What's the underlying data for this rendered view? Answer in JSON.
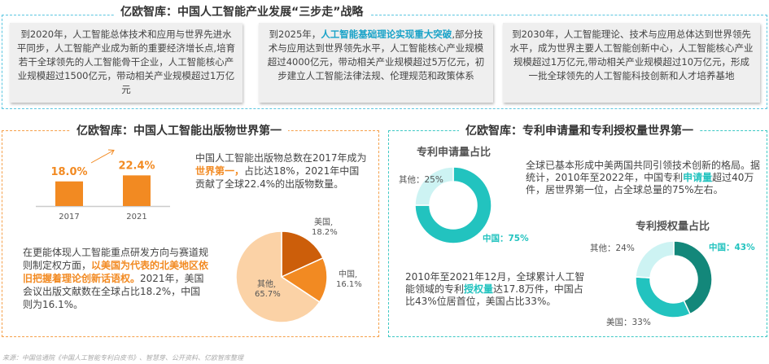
{
  "top": {
    "title": "亿欧智库：中国人工智能产业发展“三步走”战略",
    "border_color": "#5bc6e0",
    "cards": [
      {
        "parts": [
          {
            "t": "到2020年，人工智能总体技术和应用与世界先进水平同步，人工智能产业成为新的重要经济增长点,培育若干全球领先的人工智能骨干企业，人工智能核心产业规模超过1500亿元，带动相关产业规模超过1万亿元",
            "h": false
          }
        ]
      },
      {
        "parts": [
          {
            "t": "到2025年，",
            "h": false
          },
          {
            "t": "人工智能基础理论实现重大突破",
            "h": true
          },
          {
            "t": ",部分技术与应用达到世界领先水平，人工智能核心产业规模超过4000亿元，带动相关产业规模超过5万亿元，初步建立人工智能法律法规、伦理规范和政策体系",
            "h": false
          }
        ]
      },
      {
        "parts": [
          {
            "t": "到2030年，人工智能理论、技术与应用总体达到世界领先水平，成为世界主要人工智能创新中心，人工智能核心产业规模超过1万亿元,带动相关产业规模超过10万亿元，形成一批全球领先的人工智能科技创新和人才培养基地",
            "h": false
          }
        ]
      }
    ]
  },
  "left": {
    "title": "亿欧智库：中国人工智能出版物世界第一",
    "border_color": "#f5a04a",
    "text1": [
      {
        "t": "中国人工智能出版物总数在2017年成为",
        "h": false
      },
      {
        "t": "世界第一，",
        "h": true
      },
      {
        "t": "占比达18%，2021年中国贡献了全球22.4%的出版物数量。",
        "h": false
      }
    ],
    "text2": [
      {
        "t": "在更能体现人工智能重点研发方向与赛道规则制定权方面，",
        "h": false
      },
      {
        "t": "以美国为代表的北美地区依旧把握着理论创新话语权。",
        "h": true
      },
      {
        "t": "2021年，美国会议出版文献数在全球占比18.2%，中国则为16.1%。",
        "h": false
      }
    ]
  },
  "right": {
    "title": "亿欧智库：专利申请量和专利授权量世界第一",
    "border_color": "#3cc8c4",
    "text1": [
      {
        "t": "全球已基本形成中美两国共同引领技术创新的格局。据统计，2010年至2022年，中国专利",
        "h": false
      },
      {
        "t": "申请量",
        "h": true
      },
      {
        "t": "超过40万件，居世界第一位，占全球总量的75%左右。",
        "h": false
      }
    ],
    "text2": [
      {
        "t": "2010年至2021年12月，全球累计人工智能领域的专利",
        "h": false
      },
      {
        "t": "授权量",
        "h": true
      },
      {
        "t": "达17.8万件，中国占比43%位居首位，美国占比33%。",
        "h": false
      }
    ]
  },
  "source": "来源：中国信通院《中国人工智能专利白皮书》、智慧芽、公开资料、亿欧智库整理",
  "chart_data": [
    {
      "type": "bar",
      "categories": [
        "2017",
        "2021"
      ],
      "values": [
        18.0,
        22.4
      ],
      "data_labels": [
        "18.0%",
        "22.4%"
      ],
      "color": "#f28a22",
      "ylim": [
        0,
        25
      ]
    },
    {
      "type": "pie",
      "slices": [
        {
          "name": "美国",
          "value": 18.2,
          "label": "18.2%",
          "color": "#cc5e0a"
        },
        {
          "name": "中国",
          "value": 16.1,
          "label": "16.1%",
          "color": "#f28a22"
        },
        {
          "name": "其他",
          "value": 65.7,
          "label": "65.7%",
          "color": "#fbd2a6"
        }
      ]
    },
    {
      "type": "pie",
      "donut": true,
      "title": "专利申请量占比",
      "slices": [
        {
          "name": "中国",
          "value": 75,
          "label": "中国：75%",
          "color": "#22c3bf"
        },
        {
          "name": "其他",
          "value": 25,
          "label": "其他：25%",
          "color": "#cdf3f3"
        }
      ]
    },
    {
      "type": "pie",
      "donut": true,
      "title": "专利授权量占比",
      "slices": [
        {
          "name": "中国",
          "value": 43,
          "label": "中国：43%",
          "color": "#13877a"
        },
        {
          "name": "美国",
          "value": 33,
          "label": "美国：33%",
          "color": "#22c3bf"
        },
        {
          "name": "其他",
          "value": 24,
          "label": "其他：24%",
          "color": "#cdf3f3"
        }
      ]
    }
  ]
}
